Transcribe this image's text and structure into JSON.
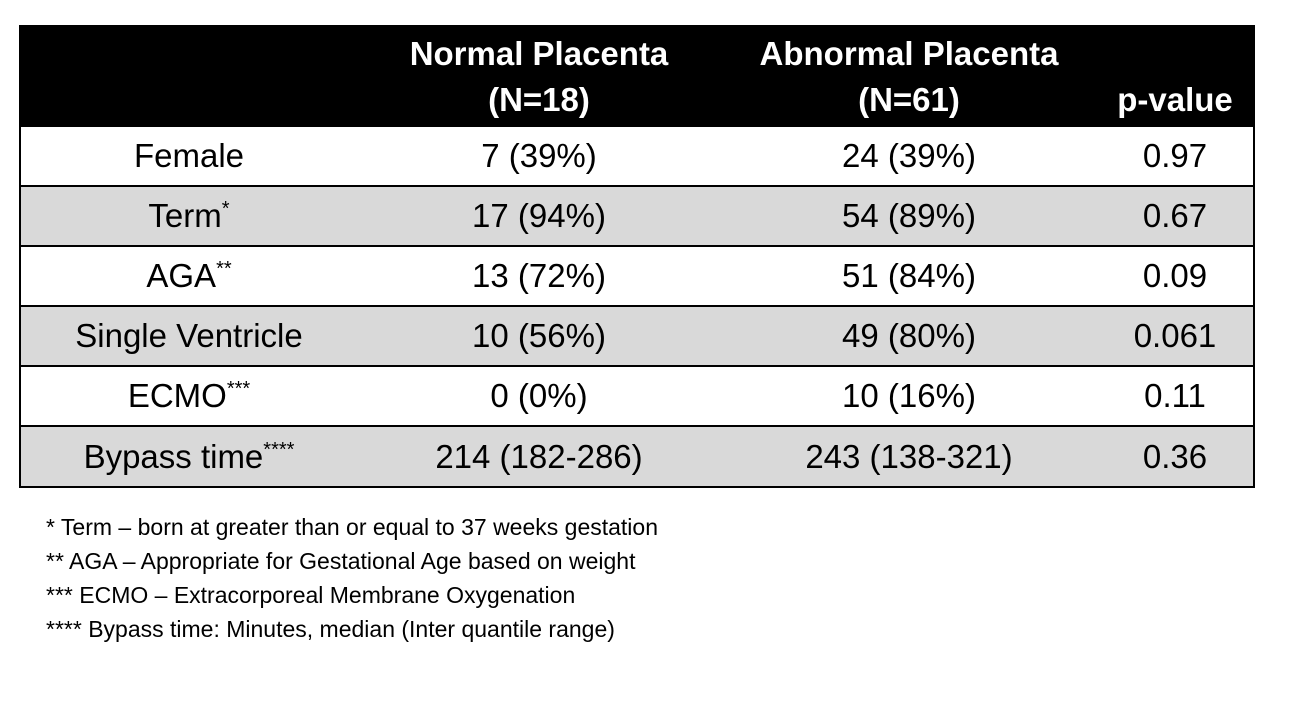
{
  "table": {
    "headers": [
      {
        "line1": "",
        "line2": ""
      },
      {
        "line1": "Normal Placenta",
        "line2": "(N=18)"
      },
      {
        "line1": "Abnormal Placenta",
        "line2": "(N=61)"
      },
      {
        "line1": "",
        "line2": "p-value"
      }
    ],
    "rows": [
      {
        "label": "Female",
        "marker": "",
        "normal": "7 (39%)",
        "abnormal": "24 (39%)",
        "p": "0.97",
        "shaded": false
      },
      {
        "label": "Term",
        "marker": "*",
        "normal": "17 (94%)",
        "abnormal": "54 (89%)",
        "p": "0.67",
        "shaded": true
      },
      {
        "label": "AGA",
        "marker": "**",
        "normal": "13 (72%)",
        "abnormal": "51 (84%)",
        "p": "0.09",
        "shaded": false
      },
      {
        "label": "Single Ventricle",
        "marker": "",
        "normal": "10 (56%)",
        "abnormal": "49 (80%)",
        "p": "0.061",
        "shaded": true
      },
      {
        "label": "ECMO",
        "marker": "***",
        "normal": "0 (0%)",
        "abnormal": "10 (16%)",
        "p": "0.11",
        "shaded": false
      },
      {
        "label": "Bypass time",
        "marker": "****",
        "normal": "214 (182-286)",
        "abnormal": "243 (138-321)",
        "p": "0.36",
        "shaded": true
      }
    ],
    "colors": {
      "header_bg": "#000000",
      "header_text": "#ffffff",
      "shaded_row": "#d9d9d9"
    }
  },
  "footnotes": [
    "* Term – born at greater than or equal to 37 weeks gestation",
    "** AGA – Appropriate for Gestational Age based on weight",
    "*** ECMO – Extracorporeal Membrane Oxygenation",
    "**** Bypass time: Minutes, median (Inter quantile range)"
  ]
}
